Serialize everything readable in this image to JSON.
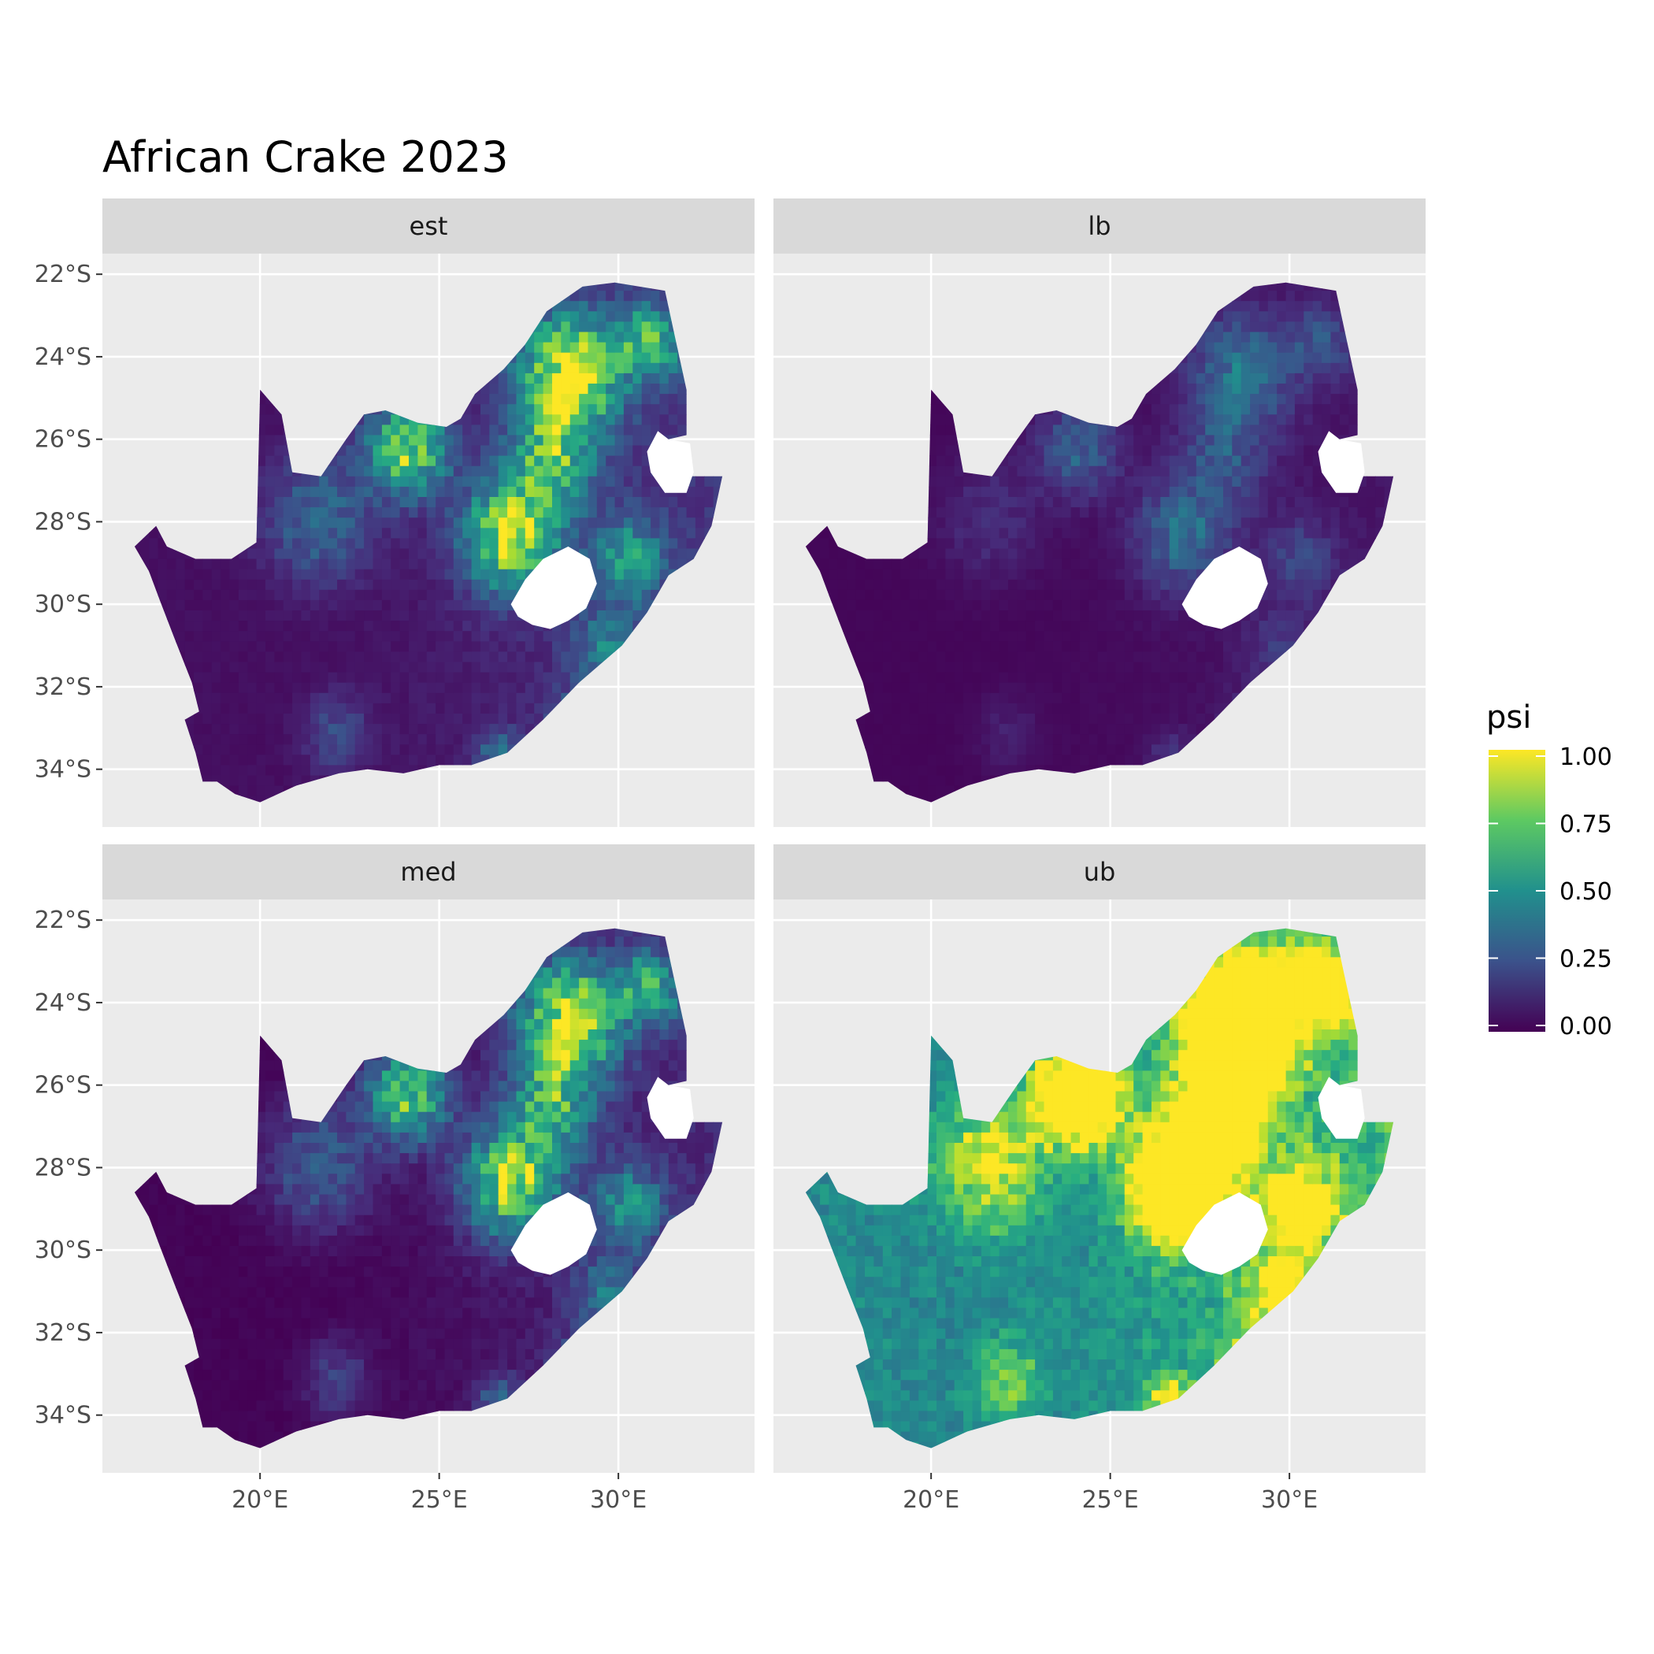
{
  "chart_data": {
    "type": "heatmap",
    "title": "African Crake 2023",
    "xlabel": "",
    "ylabel": "",
    "x_ticks": [
      {
        "value": 20,
        "label": "20°E"
      },
      {
        "value": 25,
        "label": "25°E"
      },
      {
        "value": 30,
        "label": "30°E"
      }
    ],
    "y_ticks": [
      {
        "value": -22,
        "label": "22°S"
      },
      {
        "value": -24,
        "label": "24°S"
      },
      {
        "value": -26,
        "label": "26°S"
      },
      {
        "value": -28,
        "label": "28°S"
      },
      {
        "value": -30,
        "label": "30°S"
      },
      {
        "value": -32,
        "label": "32°S"
      },
      {
        "value": -34,
        "label": "34°S"
      }
    ],
    "xlim": [
      15.6,
      33.8
    ],
    "ylim": [
      -35.4,
      -21.5
    ],
    "facets": [
      "est",
      "lb",
      "med",
      "ub"
    ],
    "grid": true,
    "legend": {
      "title": "psi",
      "placement": "right",
      "ticks": [
        {
          "value": 1.0,
          "label": "1.00"
        },
        {
          "value": 0.75,
          "label": "0.75"
        },
        {
          "value": 0.5,
          "label": "0.50"
        },
        {
          "value": 0.25,
          "label": "0.25"
        },
        {
          "value": 0.0,
          "label": "0.00"
        }
      ],
      "colormap": [
        "#440154",
        "#3b528b",
        "#21908d",
        "#5dc962",
        "#fde725"
      ]
    },
    "panel_background": "#ebebeb",
    "strip_background": "#d9d9d9",
    "outline_lonlat": [
      [
        16.5,
        -28.6
      ],
      [
        17.1,
        -28.1
      ],
      [
        17.4,
        -28.6
      ],
      [
        18.2,
        -28.9
      ],
      [
        19.2,
        -28.9
      ],
      [
        19.9,
        -28.5
      ],
      [
        20.0,
        -24.8
      ],
      [
        20.6,
        -25.4
      ],
      [
        20.9,
        -26.8
      ],
      [
        21.7,
        -26.9
      ],
      [
        22.4,
        -26.0
      ],
      [
        22.9,
        -25.4
      ],
      [
        23.5,
        -25.3
      ],
      [
        24.4,
        -25.6
      ],
      [
        25.2,
        -25.7
      ],
      [
        25.6,
        -25.5
      ],
      [
        26.0,
        -24.9
      ],
      [
        26.8,
        -24.3
      ],
      [
        27.4,
        -23.7
      ],
      [
        28.0,
        -22.9
      ],
      [
        29.0,
        -22.3
      ],
      [
        29.9,
        -22.2
      ],
      [
        31.3,
        -22.4
      ],
      [
        31.6,
        -23.6
      ],
      [
        31.9,
        -24.8
      ],
      [
        31.9,
        -25.9
      ],
      [
        31.4,
        -26.0
      ],
      [
        30.9,
        -26.8
      ],
      [
        31.3,
        -27.3
      ],
      [
        32.0,
        -26.9
      ],
      [
        32.9,
        -26.9
      ],
      [
        32.6,
        -28.1
      ],
      [
        32.1,
        -28.9
      ],
      [
        31.4,
        -29.3
      ],
      [
        30.8,
        -30.2
      ],
      [
        30.1,
        -31.0
      ],
      [
        28.9,
        -31.9
      ],
      [
        27.9,
        -32.8
      ],
      [
        26.9,
        -33.6
      ],
      [
        25.9,
        -33.9
      ],
      [
        25.0,
        -33.9
      ],
      [
        24.0,
        -34.1
      ],
      [
        23.0,
        -34.0
      ],
      [
        22.2,
        -34.1
      ],
      [
        21.0,
        -34.4
      ],
      [
        20.0,
        -34.8
      ],
      [
        19.3,
        -34.6
      ],
      [
        18.8,
        -34.3
      ],
      [
        18.4,
        -34.3
      ],
      [
        18.2,
        -33.6
      ],
      [
        17.9,
        -32.8
      ],
      [
        18.3,
        -32.6
      ],
      [
        18.1,
        -31.9
      ],
      [
        17.6,
        -30.8
      ],
      [
        17.2,
        -29.9
      ],
      [
        16.9,
        -29.2
      ],
      [
        16.5,
        -28.6
      ]
    ],
    "lesotho_lonlat": [
      [
        27.0,
        -30.0
      ],
      [
        27.4,
        -29.4
      ],
      [
        27.9,
        -28.9
      ],
      [
        28.6,
        -28.6
      ],
      [
        29.2,
        -28.9
      ],
      [
        29.4,
        -29.5
      ],
      [
        29.1,
        -30.1
      ],
      [
        28.6,
        -30.4
      ],
      [
        28.1,
        -30.6
      ],
      [
        27.6,
        -30.5
      ],
      [
        27.2,
        -30.3
      ],
      [
        27.0,
        -30.0
      ]
    ],
    "eswatini_lonlat": [
      [
        30.9,
        -26.8
      ],
      [
        30.8,
        -26.3
      ],
      [
        31.1,
        -25.8
      ],
      [
        31.4,
        -26.0
      ],
      [
        32.0,
        -26.1
      ],
      [
        32.1,
        -26.8
      ],
      [
        31.9,
        -27.3
      ],
      [
        31.3,
        -27.3
      ],
      [
        30.9,
        -26.8
      ]
    ],
    "hotspots": [
      {
        "lon": 28.5,
        "lat": -24.3,
        "r": 1.4,
        "w": 0.9
      },
      {
        "lon": 30.8,
        "lat": -23.5,
        "r": 0.9,
        "w": 0.55
      },
      {
        "lon": 24.0,
        "lat": -26.1,
        "r": 1.1,
        "w": 0.75
      },
      {
        "lon": 26.9,
        "lat": -28.2,
        "r": 1.3,
        "w": 0.85
      },
      {
        "lon": 28.0,
        "lat": -26.4,
        "r": 1.2,
        "w": 0.55
      },
      {
        "lon": 30.2,
        "lat": -28.8,
        "r": 1.0,
        "w": 0.45
      },
      {
        "lon": 28.7,
        "lat": -33.0,
        "r": 0.8,
        "w": 0.35
      },
      {
        "lon": 26.6,
        "lat": -33.6,
        "r": 0.6,
        "w": 0.35
      },
      {
        "lon": 21.5,
        "lat": -27.8,
        "r": 1.5,
        "w": 0.3
      },
      {
        "lon": 22.0,
        "lat": -33.0,
        "r": 0.9,
        "w": 0.2
      },
      {
        "lon": 29.5,
        "lat": -31.0,
        "r": 1.0,
        "w": 0.3
      }
    ],
    "facet_scaling": {
      "est": {
        "gain": 1.0,
        "offset": 0.0
      },
      "lb": {
        "gain": 0.38,
        "offset": 0.0
      },
      "med": {
        "gain": 0.95,
        "offset": -0.03
      },
      "ub": {
        "gain": 1.8,
        "offset": 0.32
      }
    }
  }
}
